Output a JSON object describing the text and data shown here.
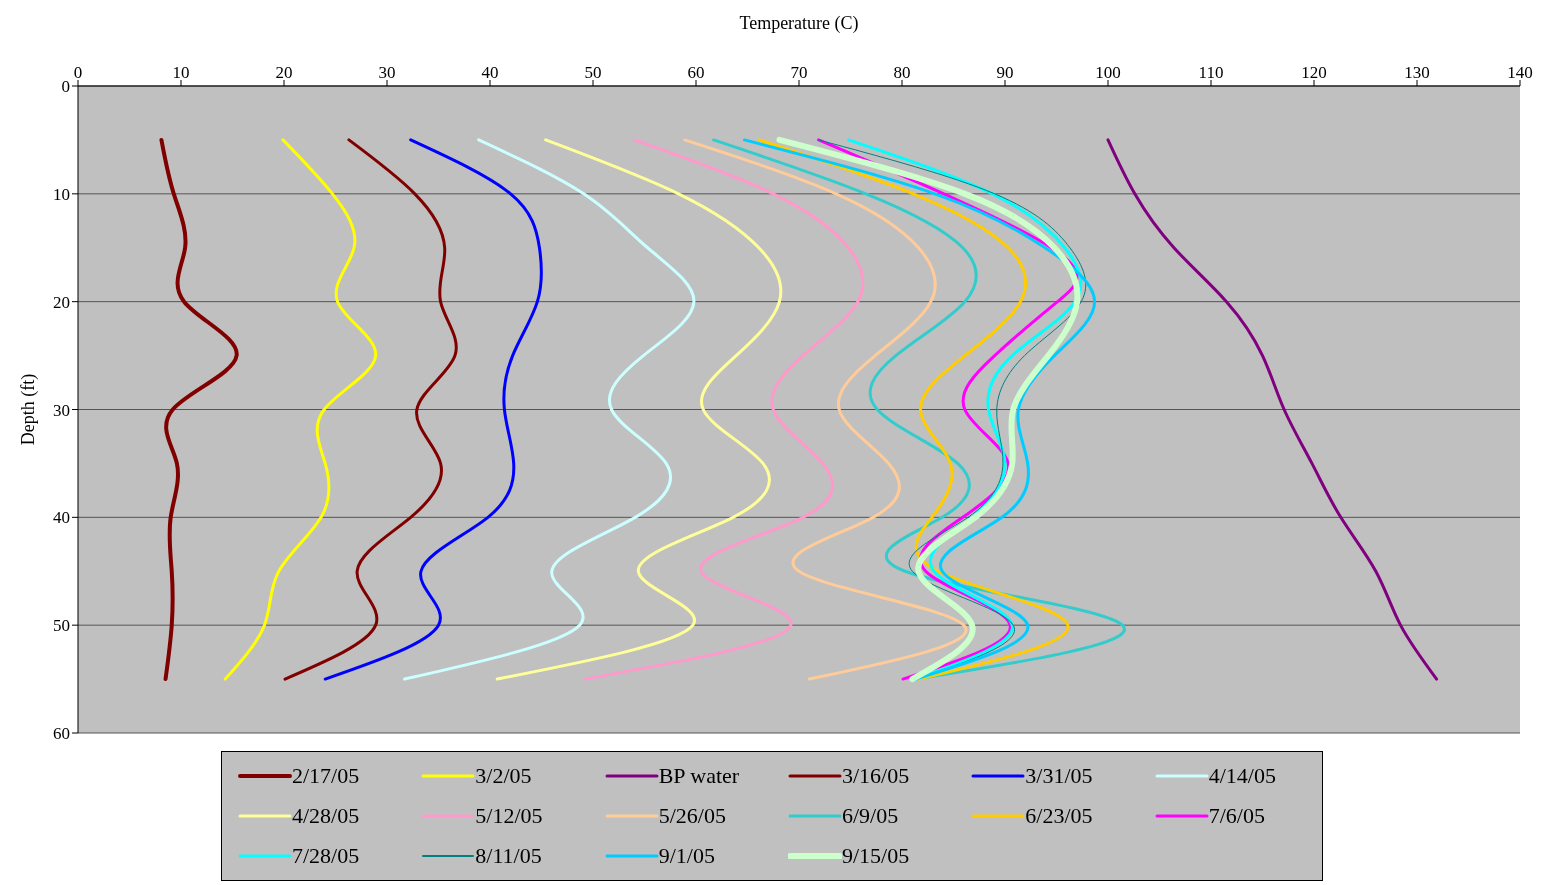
{
  "chart_data": {
    "type": "line",
    "xlabel": "Temperature (C)",
    "ylabel": "Depth (ft)",
    "xlim": [
      0,
      140
    ],
    "xticks": [
      0,
      10,
      20,
      30,
      40,
      50,
      60,
      70,
      80,
      90,
      100,
      110,
      120,
      130,
      140
    ],
    "ylim": [
      60,
      0
    ],
    "yticks": [
      0,
      10,
      20,
      30,
      40,
      50,
      60
    ],
    "grid": "y",
    "legend": "bottom",
    "marker": "none",
    "line_style": "solid",
    "series": [
      {
        "name": "2/17/05",
        "color": "#800000",
        "x": [
          8.1,
          9.3,
          10.4,
          10.3,
          15.4,
          9.2,
          9.6,
          9.0,
          9.1,
          9.1,
          8.5
        ],
        "values": [
          5,
          10,
          15,
          20,
          25,
          30,
          35,
          40,
          45,
          50,
          55
        ]
      },
      {
        "name": "3/2/05",
        "color": "#ffff00",
        "x": [
          19.9,
          24.7,
          26.8,
          25.2,
          28.9,
          23.9,
          24.0,
          23.6,
          19.5,
          18.1,
          14.3
        ],
        "values": [
          5,
          10,
          15,
          20,
          25,
          30,
          35,
          40,
          45,
          50,
          55
        ]
      },
      {
        "name": "BP water",
        "color": "#800080",
        "x": [
          100.0,
          102.6,
          106.4,
          111.5,
          115.0,
          117.1,
          119.8,
          122.6,
          126.0,
          128.4,
          131.9
        ],
        "values": [
          5,
          10,
          15,
          20,
          25,
          30,
          35,
          40,
          45,
          50,
          55
        ]
      },
      {
        "name": "3/16/05",
        "color": "#800000",
        "x": [
          26.3,
          32.7,
          35.6,
          35.2,
          36.6,
          32.9,
          35.2,
          32.3,
          27.1,
          28.9,
          20.1
        ],
        "values": [
          5,
          10,
          15,
          20,
          25,
          30,
          35,
          40,
          45,
          50,
          55
        ]
      },
      {
        "name": "3/31/05",
        "color": "#0000ff",
        "x": [
          32.3,
          42.0,
          44.8,
          44.6,
          42.2,
          41.4,
          42.3,
          39.8,
          33.3,
          35.0,
          24.0
        ],
        "values": [
          5,
          10,
          15,
          20,
          25,
          30,
          35,
          40,
          45,
          50,
          55
        ]
      },
      {
        "name": "4/14/05",
        "color": "#ccffff",
        "x": [
          38.9,
          49.1,
          55.3,
          59.8,
          54.9,
          51.8,
          57.1,
          54.1,
          46.0,
          48.7,
          31.7
        ],
        "values": [
          5,
          10,
          15,
          20,
          25,
          30,
          35,
          40,
          45,
          50,
          55
        ]
      },
      {
        "name": "4/28/05",
        "color": "#ffff99",
        "x": [
          45.4,
          58.3,
          66.1,
          68.1,
          63.9,
          60.7,
          66.5,
          63.6,
          54.4,
          59.7,
          40.7
        ],
        "values": [
          5,
          10,
          15,
          20,
          25,
          30,
          35,
          40,
          45,
          50,
          55
        ]
      },
      {
        "name": "5/12/05",
        "color": "#ff99cc",
        "x": [
          54.0,
          67.5,
          74.8,
          75.7,
          70.4,
          67.5,
          72.3,
          70.4,
          60.5,
          69.2,
          49.2
        ],
        "values": [
          5,
          10,
          15,
          20,
          25,
          30,
          35,
          40,
          45,
          50,
          55
        ]
      },
      {
        "name": "5/26/05",
        "color": "#ffcc99",
        "x": [
          58.9,
          73.6,
          81.6,
          82.8,
          77.4,
          73.9,
          78.7,
          77.2,
          70.0,
          86.0,
          71.0
        ],
        "values": [
          5,
          10,
          15,
          20,
          25,
          30,
          35,
          40,
          45,
          50,
          55
        ]
      },
      {
        "name": "6/9/05",
        "color": "#33cccc",
        "x": [
          61.7,
          76.5,
          85.9,
          86.1,
          79.4,
          77.6,
          85.4,
          83.9,
          80.3,
          101.4,
          81.3
        ],
        "values": [
          5,
          10,
          15,
          20,
          25,
          30,
          35,
          40,
          45,
          50,
          55
        ]
      },
      {
        "name": "6/23/05",
        "color": "#ffcc00",
        "x": [
          66.1,
          81.1,
          90.3,
          91.5,
          86.1,
          81.8,
          84.7,
          82.9,
          83.5,
          96.1,
          81.6
        ],
        "values": [
          5,
          10,
          15,
          20,
          25,
          30,
          35,
          40,
          45,
          50,
          55
        ]
      },
      {
        "name": "7/6/05",
        "color": "#ff00ff",
        "x": [
          71.9,
          null,
          94.5,
          95.1,
          89.0,
          86.1,
          90.3,
          85.9,
          82.3,
          90.5,
          80.1
        ],
        "values": [
          5,
          null,
          15,
          20,
          25,
          30,
          35,
          40,
          45,
          50,
          55
        ]
      },
      {
        "name": "7/28/05",
        "color": "#00ffff",
        "x": [
          74.8,
          88.8,
          95.8,
          96.8,
          90.7,
          88.4,
          90.0,
          86.8,
          83.1,
          90.7,
          81.3
        ],
        "values": [
          5,
          10,
          15,
          20,
          25,
          30,
          35,
          40,
          45,
          50,
          55
        ]
      },
      {
        "name": "8/11/05",
        "color": "#008080",
        "x": [
          71.9,
          89.0,
          96.3,
          97.4,
          91.9,
          89.2,
          89.8,
          86.4,
          81.0,
          90.8,
          81.3
        ],
        "values": [
          5,
          10,
          15,
          20,
          25,
          30,
          35,
          40,
          45,
          50,
          55
        ]
      },
      {
        "name": "9/1/05",
        "color": "#00ccff",
        "x": [
          64.7,
          83.2,
          93.9,
          98.7,
          94.8,
          91.3,
          92.2,
          89.7,
          83.9,
          92.2,
          81.3
        ],
        "values": [
          5,
          10,
          15,
          20,
          25,
          30,
          35,
          40,
          45,
          50,
          55
        ]
      },
      {
        "name": "9/15/05",
        "color": "#ccffcc",
        "x": [
          68.1,
          86.1,
          94.8,
          97.0,
          94.2,
          90.8,
          90.7,
          87.1,
          81.6,
          86.8,
          81.0
        ],
        "values": [
          5,
          10,
          15,
          20,
          25,
          30,
          35,
          40,
          45,
          50,
          55
        ]
      }
    ]
  }
}
